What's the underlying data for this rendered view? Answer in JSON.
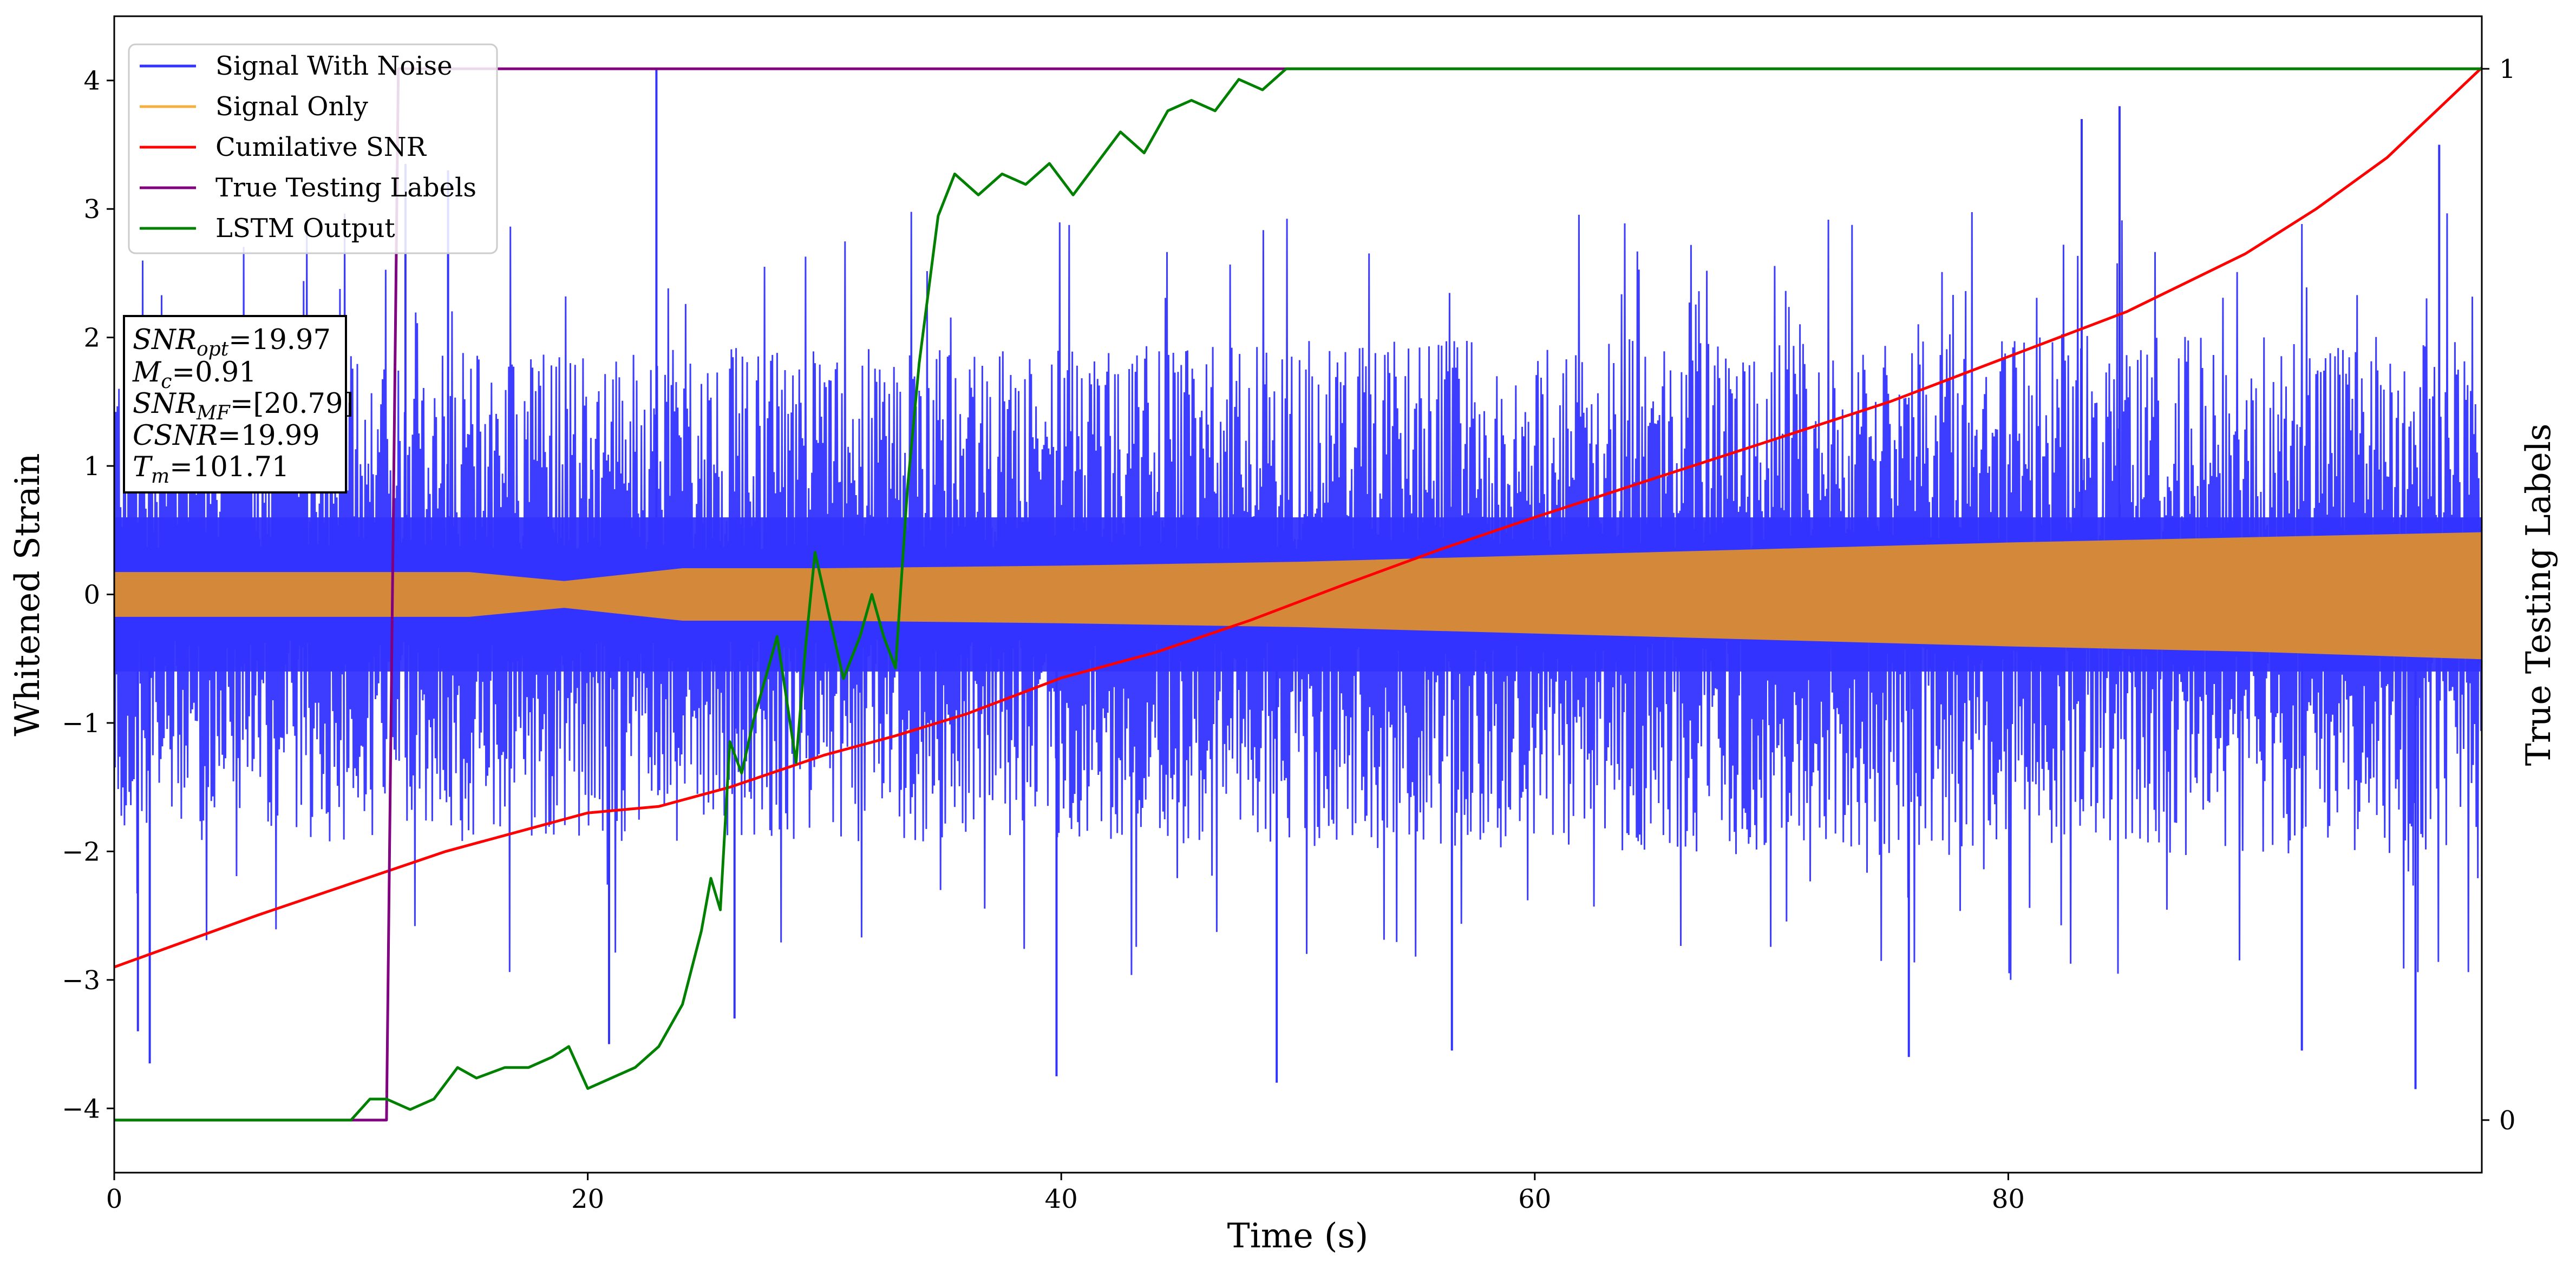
{
  "chart_data": {
    "type": "line",
    "xlabel": "Time (s)",
    "ylabel": "Whitened Strain",
    "y2label": "True Testing Labels",
    "xlim": [
      0,
      100
    ],
    "ylim": [
      -4.5,
      4.5
    ],
    "y2lim": [
      -0.05,
      1.05
    ],
    "x_ticks": [
      0,
      20,
      40,
      60,
      80
    ],
    "y_ticks": [
      -4,
      -3,
      -2,
      -1,
      0,
      1,
      2,
      3,
      4
    ],
    "y2_ticks": [
      0,
      1
    ],
    "legend": {
      "placement": "top-left",
      "items": [
        {
          "label": "Signal With Noise",
          "color": "#3333ff"
        },
        {
          "label": "Signal Only",
          "color": "#f5b041"
        },
        {
          "label": "Cumilative SNR",
          "color": "#ff0000"
        },
        {
          "label": "True Testing Labels",
          "color": "#800080"
        },
        {
          "label": "LSTM Output",
          "color": "#008000"
        }
      ]
    },
    "info_box": {
      "lines": [
        {
          "name": "SNR",
          "sub": "opt",
          "value": "=19.97"
        },
        {
          "name": "M",
          "sub": "c",
          "value": "=0.91"
        },
        {
          "name": "SNR",
          "sub": "MF",
          "value": "=[20.79]"
        },
        {
          "name": "CSNR",
          "sub": "",
          "value": "=19.99"
        },
        {
          "name": "T",
          "sub": "m",
          "value": "=101.71"
        }
      ]
    },
    "series": [
      {
        "name": "Signal With Noise",
        "axis": "left",
        "color": "#3333ff",
        "style": "dense-noise",
        "envelope_x": [
          0,
          10,
          20,
          30,
          40,
          50,
          60,
          70,
          80,
          90,
          100
        ],
        "typical_abs": [
          1.5,
          1.5,
          1.5,
          1.5,
          1.5,
          1.55,
          1.55,
          1.6,
          1.6,
          1.6,
          1.6
        ],
        "spikes": [
          {
            "x": 22.9,
            "y": 4.1
          },
          {
            "x": 12.3,
            "y": 3.35
          },
          {
            "x": 84.7,
            "y": 3.8
          },
          {
            "x": 14.1,
            "y": 3.3
          },
          {
            "x": 83.1,
            "y": 3.7
          },
          {
            "x": 98.2,
            "y": 3.5
          },
          {
            "x": 1.0,
            "y": -3.4
          },
          {
            "x": 1.5,
            "y": -3.65
          },
          {
            "x": 26.2,
            "y": -3.3
          },
          {
            "x": 39.8,
            "y": -3.75
          },
          {
            "x": 49.1,
            "y": -3.8
          },
          {
            "x": 97.2,
            "y": -3.85
          },
          {
            "x": 20.9,
            "y": -3.5
          },
          {
            "x": 56.5,
            "y": -3.55
          },
          {
            "x": 75.8,
            "y": -3.6
          },
          {
            "x": 92.4,
            "y": -3.55
          }
        ]
      },
      {
        "name": "Signal Only",
        "axis": "left",
        "color": "#d4893a",
        "style": "envelope-band",
        "x": [
          0,
          15,
          19,
          24,
          30,
          40,
          50,
          60,
          70,
          80,
          90,
          100
        ],
        "upper": [
          0.17,
          0.17,
          0.1,
          0.2,
          0.2,
          0.22,
          0.25,
          0.3,
          0.35,
          0.4,
          0.44,
          0.48
        ],
        "lower": [
          -0.17,
          -0.17,
          -0.1,
          -0.2,
          -0.2,
          -0.22,
          -0.25,
          -0.3,
          -0.35,
          -0.4,
          -0.44,
          -0.5
        ]
      },
      {
        "name": "Cumilative SNR",
        "axis": "left",
        "color": "#ff0000",
        "x": [
          0,
          3,
          6,
          10,
          14,
          18,
          20,
          23,
          26,
          30,
          33,
          36,
          40,
          44,
          48,
          52,
          56,
          60,
          65,
          70,
          75,
          80,
          85,
          90,
          93,
          96,
          100
        ],
        "y": [
          -2.9,
          -2.7,
          -2.5,
          -2.25,
          -2.0,
          -1.8,
          -1.7,
          -1.65,
          -1.5,
          -1.25,
          -1.1,
          -0.93,
          -0.65,
          -0.45,
          -0.2,
          0.08,
          0.35,
          0.6,
          0.9,
          1.2,
          1.5,
          1.85,
          2.2,
          2.65,
          3.0,
          3.4,
          4.1
        ]
      },
      {
        "name": "True Testing Labels",
        "axis": "right",
        "color": "#800080",
        "x": [
          0,
          11.5,
          12.0,
          100
        ],
        "y": [
          0,
          0,
          1,
          1
        ]
      },
      {
        "name": "LSTM Output",
        "axis": "right",
        "color": "#008000",
        "x": [
          0,
          10,
          10.8,
          11.5,
          12.5,
          13.5,
          14.5,
          15.3,
          16.5,
          17.5,
          18.5,
          19.2,
          20,
          21,
          22,
          23,
          24,
          24.8,
          25.2,
          25.6,
          26,
          26.5,
          27,
          28,
          28.8,
          29.2,
          29.6,
          30.2,
          30.8,
          31.5,
          32,
          32.5,
          33,
          33.5,
          34,
          34.8,
          35.5,
          36.5,
          37.5,
          38.5,
          39.5,
          40.5,
          41.5,
          42.5,
          43.5,
          44.5,
          45.5,
          46.5,
          47.5,
          48.5,
          49.5,
          50.5,
          52,
          55,
          60,
          70,
          100
        ],
        "y": [
          0,
          0,
          0.02,
          0.02,
          0.01,
          0.02,
          0.05,
          0.04,
          0.05,
          0.05,
          0.06,
          0.07,
          0.03,
          0.04,
          0.05,
          0.07,
          0.11,
          0.18,
          0.23,
          0.2,
          0.36,
          0.33,
          0.38,
          0.46,
          0.34,
          0.45,
          0.54,
          0.48,
          0.42,
          0.46,
          0.5,
          0.46,
          0.43,
          0.6,
          0.72,
          0.86,
          0.9,
          0.88,
          0.9,
          0.89,
          0.91,
          0.88,
          0.91,
          0.94,
          0.92,
          0.96,
          0.97,
          0.96,
          0.99,
          0.98,
          1.0,
          1.0,
          1.0,
          1.0,
          1.0,
          1.0,
          1.0
        ]
      }
    ]
  }
}
